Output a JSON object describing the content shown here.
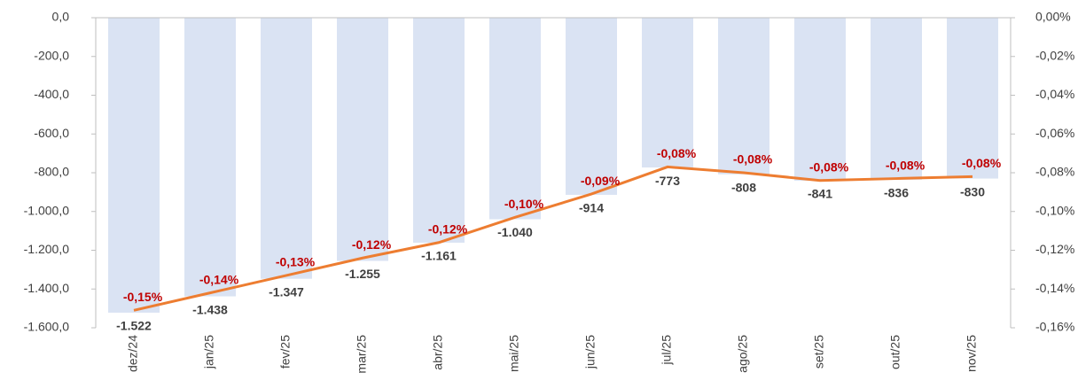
{
  "chart_data": {
    "type": "bar_line",
    "categories": [
      "dez/24",
      "jan/25",
      "fev/25",
      "mar/25",
      "abr/25",
      "mai/25",
      "jun/25",
      "jul/25",
      "ago/25",
      "set/25",
      "out/25",
      "nov/25"
    ],
    "series": [
      {
        "type": "bar",
        "color": "#dae3f3",
        "values": [
          -1522,
          -1438,
          -1347,
          -1255,
          -1161,
          -1040,
          -914,
          -773,
          -808,
          -841,
          -836,
          -830
        ],
        "value_labels": [
          "-1.522",
          "-1.438",
          "-1.347",
          "-1.255",
          "-1.161",
          "-1.040",
          "-914",
          "-773",
          "-808",
          "-841",
          "-836",
          "-830"
        ]
      },
      {
        "type": "line",
        "axis": "y2",
        "color": "#ed7d31",
        "values": [
          -0.151,
          -0.142,
          -0.133,
          -0.124,
          -0.116,
          -0.103,
          -0.091,
          -0.077,
          -0.08,
          -0.084,
          -0.083,
          -0.082
        ],
        "value_labels": [
          "-0,15%",
          "-0,14%",
          "-0,13%",
          "-0,12%",
          "-0,12%",
          "-0,10%",
          "-0,09%",
          "-0,08%",
          "-0,08%",
          "-0,08%",
          "-0,08%",
          "-0,08%"
        ]
      }
    ],
    "ylim": [
      -1600,
      0
    ],
    "yticks": [
      {
        "value": 0,
        "label": "0,0"
      },
      {
        "value": -200,
        "label": "-200,0"
      },
      {
        "value": -400,
        "label": "-400,0"
      },
      {
        "value": -600,
        "label": "-600,0"
      },
      {
        "value": -800,
        "label": "-800,0"
      },
      {
        "value": -1000,
        "label": "-1.000,0"
      },
      {
        "value": -1200,
        "label": "-1.200,0"
      },
      {
        "value": -1400,
        "label": "-1.400,0"
      },
      {
        "value": -1600,
        "label": "-1.600,0"
      }
    ],
    "y2lim": [
      -0.16,
      0
    ],
    "y2ticks": [
      {
        "value": 0,
        "label": "0,00%"
      },
      {
        "value": -0.02,
        "label": "-0,02%"
      },
      {
        "value": -0.04,
        "label": "-0,04%"
      },
      {
        "value": -0.06,
        "label": "-0,06%"
      },
      {
        "value": -0.08,
        "label": "-0,08%"
      },
      {
        "value": -0.1,
        "label": "-0,10%"
      },
      {
        "value": -0.12,
        "label": "-0,12%"
      },
      {
        "value": -0.14,
        "label": "-0,14%"
      },
      {
        "value": -0.16,
        "label": "-0,16%"
      }
    ]
  }
}
